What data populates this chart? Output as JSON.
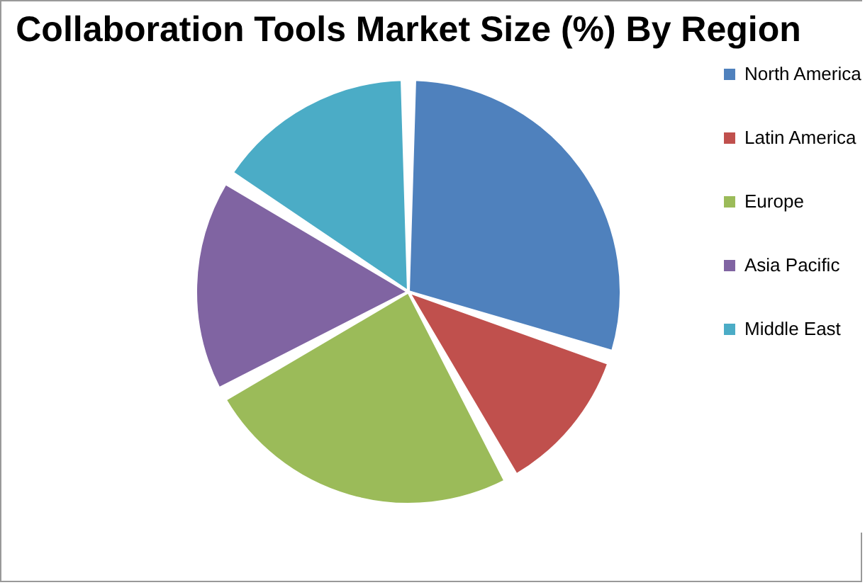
{
  "chart_data": {
    "type": "pie",
    "title": "Collaboration Tools Market Size (%) By Region",
    "categories": [
      "North America",
      "Latin America",
      "Europe",
      "Asia Pacific",
      "Middle East"
    ],
    "values": [
      30,
      12,
      25,
      17,
      16
    ],
    "colors": [
      "#4f81bd",
      "#c0504d",
      "#9bbb59",
      "#8064a2",
      "#4bacc6"
    ],
    "legend": "right"
  }
}
